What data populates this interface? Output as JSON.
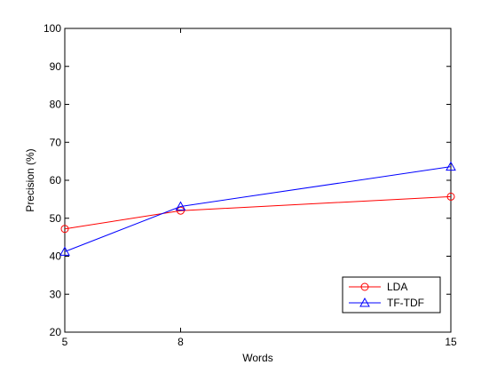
{
  "chart_data": {
    "type": "line",
    "title": "",
    "xlabel": "Words",
    "ylabel": "Precision (%)",
    "x": [
      5,
      8,
      15
    ],
    "x_ticks": [
      "5",
      "8",
      "15"
    ],
    "xlim": [
      5,
      15
    ],
    "ylim": [
      20,
      100
    ],
    "y_ticks": [
      "20",
      "30",
      "40",
      "50",
      "60",
      "70",
      "80",
      "90",
      "100"
    ],
    "grid": false,
    "legend_position": "bottom-right",
    "series": [
      {
        "name": "LDA",
        "values": [
          47.2,
          52.0,
          55.7
        ],
        "color": "#ff0000",
        "marker": "circle"
      },
      {
        "name": "TF-TDF",
        "values": [
          41.2,
          53.1,
          63.6
        ],
        "color": "#0000ff",
        "marker": "triangle"
      }
    ]
  }
}
